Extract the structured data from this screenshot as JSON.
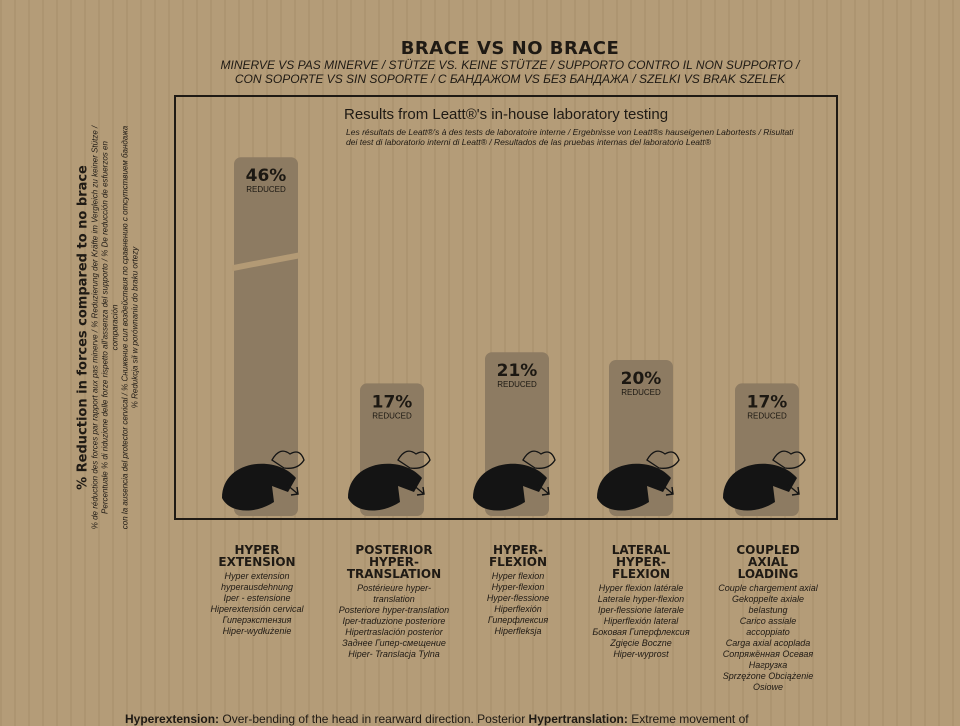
{
  "header": {
    "title": "BRACE VS NO BRACE",
    "subtitle_line1": "MINERVE VS PAS MINERVE / STÜTZE VS. KEINE STÜTZE / SUPPORTO CONTRO IL NON SUPPORTO /",
    "subtitle_line2": "CON SOPORTE VS SIN SOPORTE / С БАНДАЖОМ VS БЕЗ БАНДАЖА / SZELKI VS BRAK SZELEK"
  },
  "chart_data": {
    "type": "bar",
    "title": "Results from Leatt®'s in-house laboratory testing",
    "title_translations": "Les résultats de Leatt®'s à des tests de laboratoire interne / Ergebnisse von Leatt®s hauseigenen Labortests / Risultati dei test di laboratorio interni di Leatt® / Resultados de las pruebas internas del laboratorio Leatt®",
    "ylabel": "% Reduction in forces compared to no brace",
    "ylabel_translations": [
      "% de réduction des forces par rapport aux pas minerve / % Reduzierung der Kräfte im Vergleich zu keiner Stütze /",
      "Percentuale % di riduzione delle forze rispetto all'assenza del supporto / % De reducción de esfuerzos en comparación",
      "con la ausencia del protector cervical / % Снижение сил воздействия по сравнению с отсутствием бандажа",
      "% Redukcja sił w porównaniu do braku ortezy"
    ],
    "value_suffix": "%",
    "value_caption": "REDUCED",
    "ylim": [
      0,
      50
    ],
    "categories": [
      "HYPER\nEXTENSION",
      "POSTERIOR\nHYPER-\nTRANSLATION",
      "HYPER-\nFLEXION",
      "LATERAL\nHYPER-\nFLEXION",
      "COUPLED\nAXIAL\nLOADING"
    ],
    "values": [
      46,
      17,
      21,
      20,
      17
    ],
    "category_translations": [
      [
        "Hyper extension",
        "hyperausdehnung",
        "Iper - estensione",
        "Hiperextensión cervical",
        "Гиперэкстензия",
        "Hiper-wydłużenie"
      ],
      [
        "Postérieure hyper-",
        "translation",
        "Posteriore hyper-translation",
        "Iper-traduzione posteriore",
        "Hipertraslación posterior",
        "Заднее Гипер-смещение",
        "Hiper- Translacja Tylna"
      ],
      [
        "Hyper flexion",
        "Hyper-flexion",
        "Hyper-flessione",
        "Hiperflexión",
        "Гиперфлексия",
        "Hiperfleksja"
      ],
      [
        "Hyper flexion latérale",
        "Laterale hyper-flexion",
        "Iper-flessione laterale",
        "Hiperflexión lateral",
        "Боковая Гиперфлексия",
        "Zgięcie Boczne",
        "Hiper-wyprost"
      ],
      [
        "Couple chargement axial",
        "Gekoppelte axiale",
        "belastung",
        "Carico assiale",
        "accoppiato",
        "Carga axial acoplada",
        "Сопряжённая Осевая",
        "Нагрузка",
        "Sprzężone Obciążenie",
        "Osiowe"
      ]
    ],
    "grid": false,
    "legend": "none"
  },
  "footer": {
    "term1": "Hyperextension:",
    "text1": " Over-bending of the head in rearward direction. Posterior ",
    "term2": "Hypertranslation:",
    "text2": " Extreme movement of"
  },
  "colors": {
    "bar": "#8d7b62",
    "icon": "#141414",
    "background": "#b39a75",
    "text": "#1f1a14"
  }
}
